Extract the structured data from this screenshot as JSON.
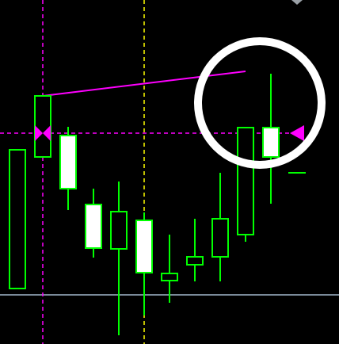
{
  "chart_data": {
    "type": "candlestick",
    "open": [
      70,
      236,
      263,
      176,
      120,
      156,
      80,
      100,
      110,
      138,
      273
    ],
    "high": [
      245,
      313,
      274,
      196,
      205,
      166,
      138,
      158,
      216,
      274,
      341
    ],
    "low": [
      70,
      236,
      169,
      109,
      11,
      36,
      52,
      79,
      79,
      129,
      177
    ],
    "close": [
      245,
      313,
      196,
      121,
      167,
      90,
      89,
      110,
      158,
      273,
      236
    ],
    "up_color": "#000000",
    "down_color": "#ffffff",
    "outline_color": "#00ff00",
    "ylim": [
      0,
      434
    ]
  }
}
